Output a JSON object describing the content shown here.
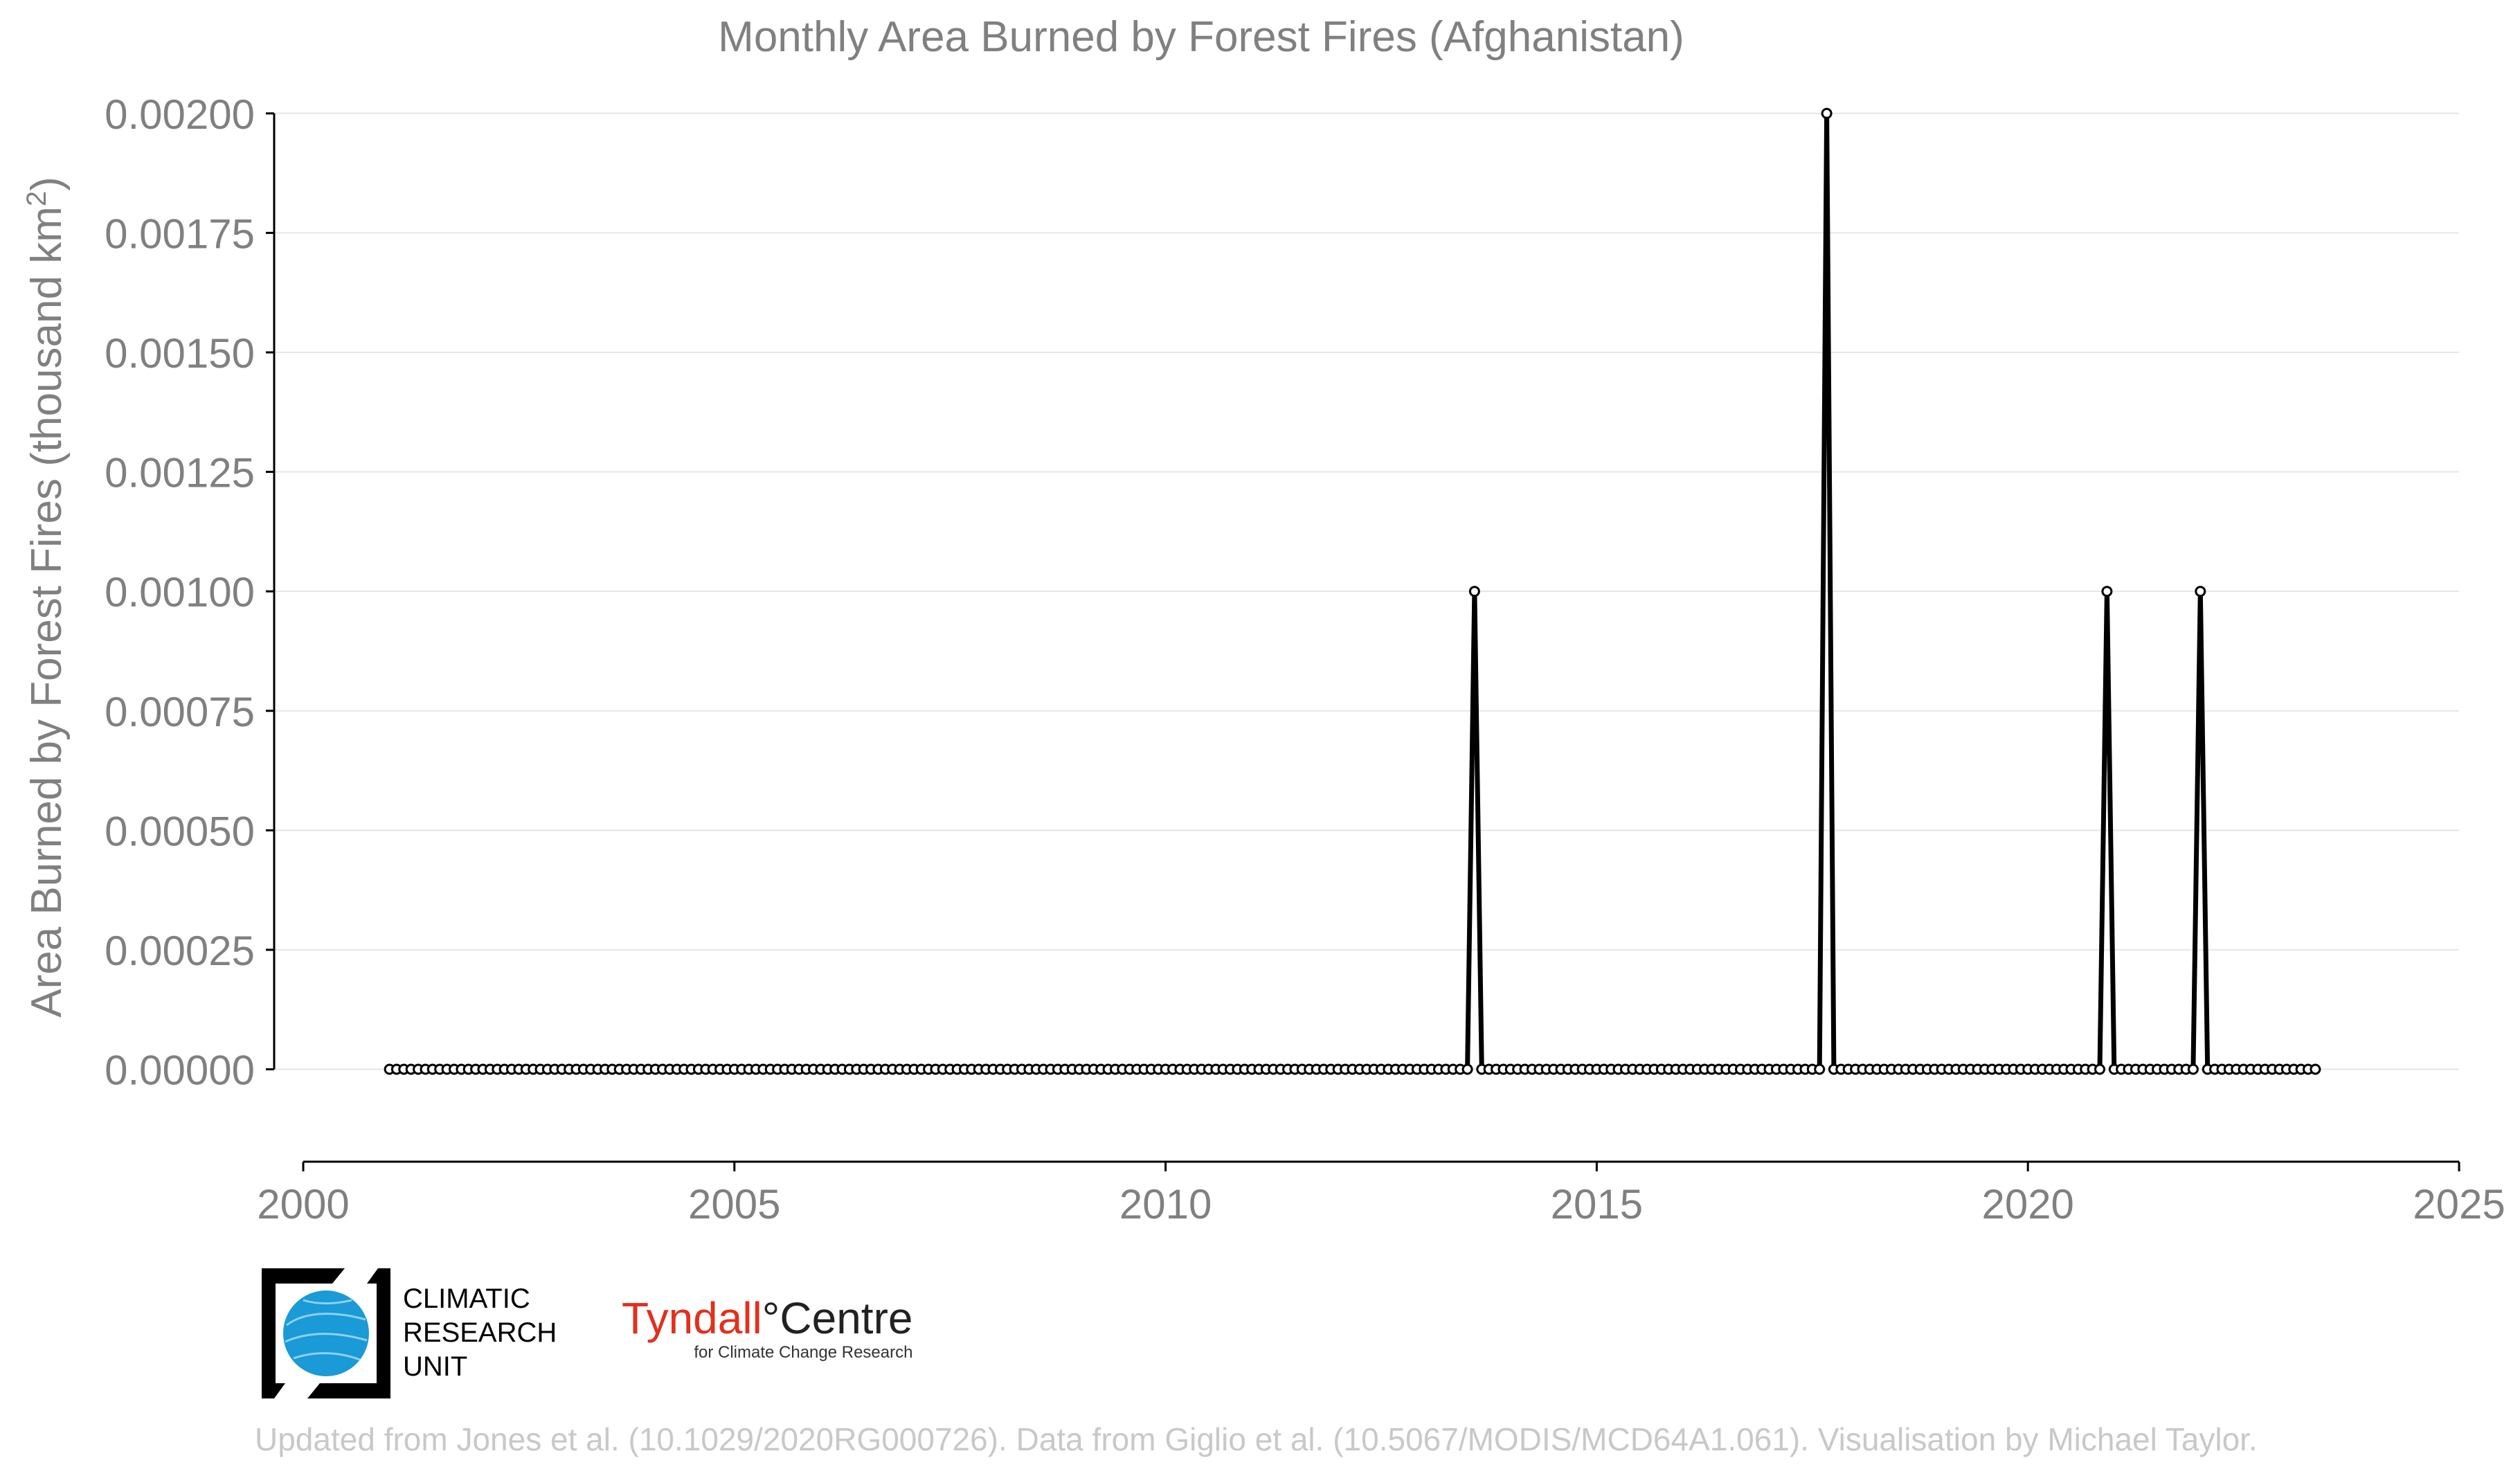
{
  "chart_data": {
    "type": "line",
    "title": "Monthly Area Burned by Forest Fires (Afghanistan)",
    "ylabel_main": "Area Burned by Forest Fires (thousand km",
    "ylabel_sup": "2",
    "ylabel_close": ")",
    "xlabel": "",
    "xlim": [
      2000,
      2025
    ],
    "ylim": [
      -0.00016,
      0.00202
    ],
    "x_ticks": [
      "2000",
      "2005",
      "2010",
      "2015",
      "2020",
      "2025"
    ],
    "y_ticks": [
      "0.00000",
      "0.00025",
      "0.00050",
      "0.00075",
      "0.00100",
      "0.00125",
      "0.00150",
      "0.00175",
      "0.00200"
    ],
    "grid": true,
    "series_start": "2001-01",
    "series_end": "2023-05",
    "baseline_value": 0,
    "nonzero_points": [
      {
        "month": "2013-08",
        "value": 0.001
      },
      {
        "month": "2017-09",
        "value": 0.002
      },
      {
        "month": "2020-12",
        "value": 0.001
      },
      {
        "month": "2022-01",
        "value": 0.001
      }
    ],
    "line_color": "#000000",
    "grid_color": "#e6e6e6",
    "text_color": "#808080"
  },
  "logos": {
    "cru_lines": [
      "CLIMATIC",
      "RESEARCH",
      "UNIT"
    ],
    "tyndall_red": "Tyndall",
    "tyndall_degree": "°",
    "tyndall_black": "Centre",
    "tyndall_sub": "for Climate Change Research"
  },
  "credit": "Updated from Jones et al. (10.1029/2020RG000726). Data from Giglio et al. (10.5067/MODIS/MCD64A1.061). Visualisation by Michael Taylor."
}
